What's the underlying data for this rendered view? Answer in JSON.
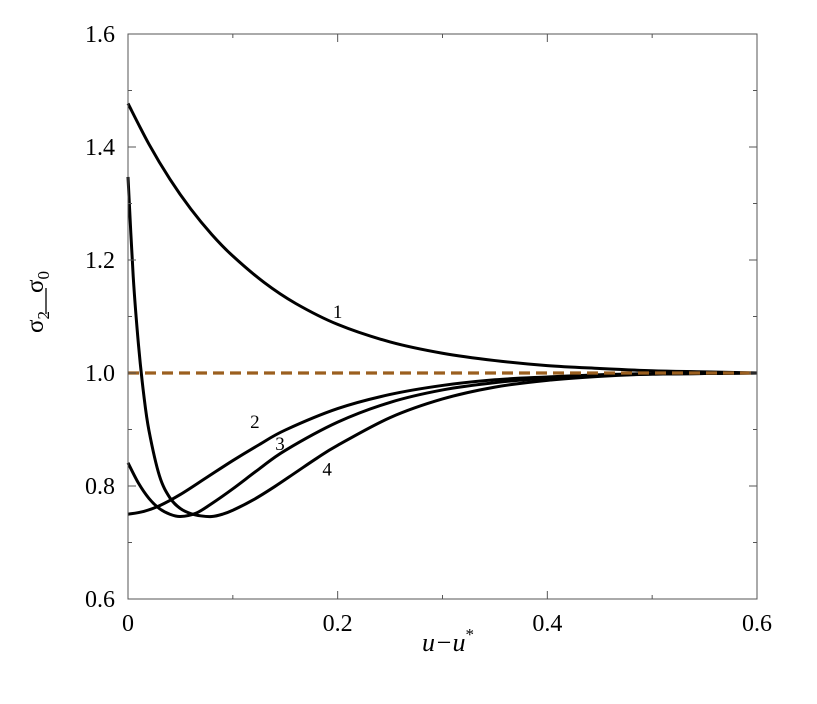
{
  "chart_data": {
    "type": "line",
    "xlabel": "u−u*",
    "ylabel": "σ₂/σ₀",
    "xlim": [
      0,
      0.6
    ],
    "ylim": [
      0.6,
      1.6
    ],
    "grid": false,
    "x_ticks": [
      {
        "value": 0,
        "label": "0"
      },
      {
        "value": 0.2,
        "label": "0.2"
      },
      {
        "value": 0.4,
        "label": "0.4"
      },
      {
        "value": 0.6,
        "label": "0.6"
      }
    ],
    "y_ticks": [
      {
        "value": 0.6,
        "label": "0.6"
      },
      {
        "value": 0.8,
        "label": "0.8"
      },
      {
        "value": 1.0,
        "label": "1.0"
      },
      {
        "value": 1.2,
        "label": "1.2"
      },
      {
        "value": 1.4,
        "label": "1.4"
      },
      {
        "value": 1.6,
        "label": "1.6"
      }
    ],
    "series": [
      {
        "name": "1",
        "color": "#000000",
        "x": [
          0,
          0.02,
          0.04,
          0.06,
          0.08,
          0.1,
          0.13,
          0.16,
          0.2,
          0.25,
          0.3,
          0.35,
          0.4,
          0.45,
          0.5,
          0.55,
          0.6
        ],
        "y": [
          1.477,
          1.405,
          1.343,
          1.29,
          1.245,
          1.207,
          1.16,
          1.123,
          1.086,
          1.055,
          1.035,
          1.022,
          1.013,
          1.008,
          1.004,
          1.002,
          1.0
        ]
      },
      {
        "name": "2",
        "color": "#000000",
        "x": [
          0,
          0.015,
          0.03,
          0.05,
          0.075,
          0.1,
          0.125,
          0.15,
          0.2,
          0.25,
          0.3,
          0.35,
          0.4,
          0.45,
          0.5,
          0.55,
          0.6
        ],
        "y": [
          0.75,
          0.755,
          0.765,
          0.785,
          0.815,
          0.845,
          0.873,
          0.899,
          0.937,
          0.962,
          0.978,
          0.988,
          0.993,
          0.997,
          0.999,
          1.0,
          1.0
        ]
      },
      {
        "name": "3",
        "color": "#000000",
        "x": [
          0,
          0.01,
          0.02,
          0.03,
          0.04,
          0.05,
          0.065,
          0.08,
          0.1,
          0.125,
          0.15,
          0.2,
          0.25,
          0.3,
          0.35,
          0.4,
          0.45,
          0.5,
          0.55,
          0.6
        ],
        "y": [
          0.841,
          0.805,
          0.778,
          0.76,
          0.75,
          0.746,
          0.752,
          0.769,
          0.795,
          0.83,
          0.863,
          0.913,
          0.948,
          0.97,
          0.983,
          0.991,
          0.996,
          0.998,
          0.999,
          1.0
        ]
      },
      {
        "name": "4",
        "color": "#000000",
        "x": [
          0,
          0.005,
          0.01,
          0.015,
          0.02,
          0.03,
          0.04,
          0.05,
          0.06,
          0.07,
          0.08,
          0.09,
          0.1,
          0.12,
          0.14,
          0.16,
          0.18,
          0.2,
          0.25,
          0.3,
          0.35,
          0.4,
          0.45,
          0.5,
          0.55,
          0.6
        ],
        "y": [
          1.347,
          1.17,
          1.05,
          0.962,
          0.898,
          0.818,
          0.779,
          0.76,
          0.751,
          0.747,
          0.746,
          0.75,
          0.757,
          0.776,
          0.799,
          0.824,
          0.849,
          0.872,
          0.921,
          0.954,
          0.975,
          0.987,
          0.994,
          0.998,
          0.999,
          1.0
        ]
      },
      {
        "name": "",
        "color": "#9b5f1f",
        "dashed": true,
        "x": [
          0,
          0.6
        ],
        "y": [
          1.0,
          1.0
        ]
      }
    ],
    "annotations": [
      {
        "text": "1",
        "x": 0.2,
        "y": 1.097
      },
      {
        "text": "2",
        "x": 0.121,
        "y": 0.903
      },
      {
        "text": "3",
        "x": 0.145,
        "y": 0.864
      },
      {
        "text": "4",
        "x": 0.19,
        "y": 0.819
      }
    ]
  }
}
